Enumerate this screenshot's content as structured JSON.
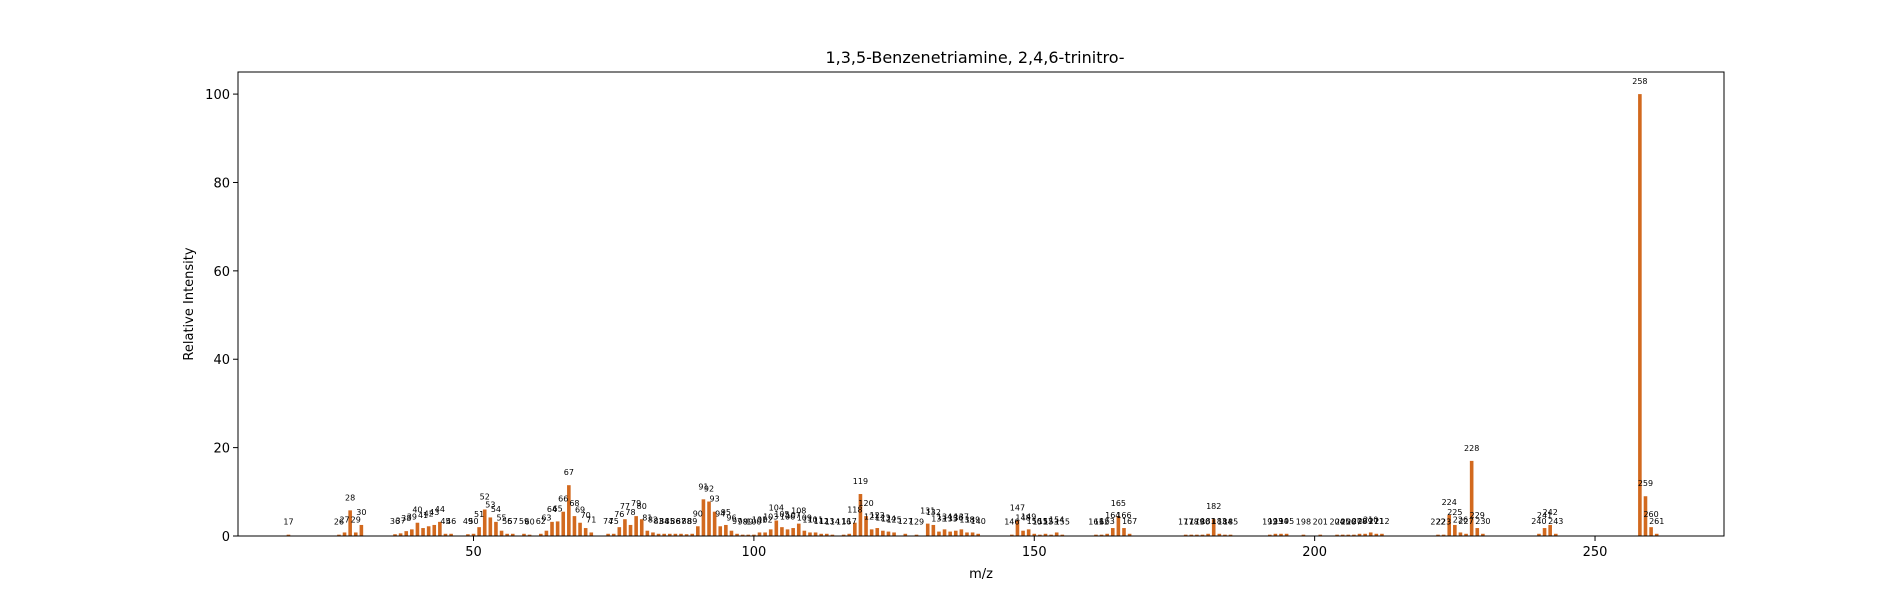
{
  "chart_data": {
    "type": "bar",
    "title": "1,3,5-Benzenetriamine, 2,4,6-trinitro-",
    "xlabel": "m/z",
    "ylabel": "Relative Intensity",
    "xlim": [
      8,
      273
    ],
    "ylim": [
      0,
      105
    ],
    "xticks": [
      50,
      100,
      150,
      200,
      250
    ],
    "yticks": [
      0,
      20,
      40,
      60,
      80,
      100
    ],
    "grid": false,
    "bar_color": "#d2691e",
    "x": [
      17,
      26,
      27,
      28,
      29,
      30,
      36,
      37,
      38,
      39,
      40,
      41,
      42,
      43,
      44,
      45,
      46,
      49,
      50,
      51,
      52,
      53,
      54,
      55,
      56,
      57,
      59,
      60,
      62,
      63,
      64,
      65,
      66,
      67,
      68,
      69,
      70,
      71,
      74,
      75,
      76,
      77,
      78,
      79,
      80,
      81,
      82,
      83,
      84,
      85,
      86,
      87,
      88,
      89,
      90,
      91,
      92,
      93,
      94,
      95,
      96,
      97,
      98,
      99,
      100,
      101,
      102,
      103,
      104,
      105,
      106,
      107,
      108,
      109,
      110,
      111,
      112,
      113,
      114,
      116,
      117,
      118,
      119,
      120,
      121,
      122,
      123,
      124,
      125,
      127,
      129,
      131,
      132,
      133,
      134,
      135,
      136,
      137,
      138,
      139,
      140,
      146,
      147,
      148,
      149,
      150,
      151,
      152,
      153,
      154,
      155,
      161,
      162,
      163,
      164,
      165,
      166,
      167,
      177,
      178,
      179,
      180,
      181,
      182,
      183,
      184,
      185,
      192,
      193,
      194,
      195,
      198,
      201,
      204,
      205,
      206,
      207,
      208,
      209,
      210,
      211,
      212,
      222,
      223,
      224,
      225,
      226,
      227,
      228,
      229,
      230,
      240,
      241,
      242,
      243,
      258,
      259,
      260,
      261
    ],
    "values": [
      0.3,
      0.3,
      0.8,
      5.8,
      0.8,
      2.5,
      0.4,
      0.6,
      1.1,
      1.5,
      3.0,
      1.8,
      2.2,
      2.5,
      3.2,
      0.5,
      0.5,
      0.4,
      0.5,
      2.0,
      6.0,
      4.2,
      3.2,
      1.2,
      0.5,
      0.5,
      0.5,
      0.3,
      0.5,
      1.2,
      3.2,
      3.3,
      5.5,
      11.5,
      4.5,
      3.0,
      1.8,
      0.8,
      0.5,
      0.5,
      2.0,
      3.8,
      2.5,
      4.5,
      3.8,
      1.2,
      0.8,
      0.5,
      0.5,
      0.5,
      0.5,
      0.5,
      0.4,
      0.5,
      2.2,
      8.3,
      7.8,
      5.5,
      2.2,
      2.5,
      1.2,
      0.5,
      0.3,
      0.3,
      0.3,
      0.8,
      0.8,
      1.5,
      3.5,
      2.0,
      1.5,
      1.8,
      2.8,
      1.2,
      0.8,
      0.8,
      0.5,
      0.5,
      0.3,
      0.3,
      0.5,
      3.0,
      9.5,
      4.5,
      1.5,
      1.8,
      1.2,
      1.0,
      0.8,
      0.5,
      0.3,
      2.8,
      2.5,
      1.0,
      1.5,
      1.0,
      1.2,
      1.5,
      0.8,
      0.8,
      0.5,
      0.3,
      3.5,
      1.2,
      1.5,
      0.5,
      0.3,
      0.5,
      0.3,
      0.8,
      0.3,
      0.3,
      0.3,
      0.5,
      1.8,
      4.5,
      1.8,
      0.5,
      0.3,
      0.3,
      0.3,
      0.3,
      0.5,
      3.8,
      0.5,
      0.3,
      0.3,
      0.3,
      0.5,
      0.5,
      0.5,
      0.3,
      0.3,
      0.3,
      0.3,
      0.3,
      0.3,
      0.5,
      0.5,
      0.8,
      0.5,
      0.5,
      0.3,
      0.3,
      4.8,
      2.5,
      0.8,
      0.5,
      17.0,
      1.8,
      0.5,
      0.5,
      1.8,
      2.5,
      0.5,
      100.0,
      9.0,
      2.0,
      0.5
    ],
    "peak_labels": [
      "17",
      "26",
      "27",
      "28",
      "29",
      "30",
      "36",
      "37",
      "38",
      "39",
      "40",
      "41",
      "42",
      "43",
      "44",
      "45",
      "46",
      "49",
      "50",
      "51",
      "52",
      "53",
      "54",
      "55",
      "56",
      "57",
      "59",
      "60",
      "62",
      "63",
      "64",
      "65",
      "66",
      "67",
      "68",
      "69",
      "70",
      "71",
      "74",
      "75",
      "76",
      "77",
      "78",
      "79",
      "80",
      "81",
      "82",
      "83",
      "84",
      "85",
      "86",
      "87",
      "88",
      "89",
      "90",
      "91",
      "92",
      "93",
      "94",
      "95",
      "96",
      "97",
      "98",
      "99",
      "100",
      "101",
      "102",
      "103",
      "104",
      "105",
      "106",
      "107",
      "108",
      "109",
      "110",
      "111",
      "112",
      "113",
      "114",
      "116",
      "117",
      "118",
      "119",
      "120",
      "121",
      "122",
      "123",
      "124",
      "125",
      "127",
      "129",
      "131",
      "132",
      "133",
      "134",
      "135",
      "136",
      "137",
      "138",
      "139",
      "140",
      "146",
      "147",
      "148",
      "149",
      "150",
      "151",
      "152",
      "153",
      "154",
      "155",
      "161",
      "162",
      "163",
      "164",
      "165",
      "166",
      "167",
      "177",
      "178",
      "179",
      "180",
      "181",
      "182",
      "183",
      "184",
      "185",
      "192",
      "193",
      "194",
      "195",
      "198",
      "201",
      "204",
      "205",
      "206",
      "207",
      "208",
      "209",
      "210",
      "211",
      "212",
      "222",
      "223",
      "224",
      "225",
      "226",
      "227",
      "228",
      "229",
      "230",
      "240",
      "241",
      "242",
      "243",
      "258",
      "259",
      "260",
      "261"
    ]
  }
}
